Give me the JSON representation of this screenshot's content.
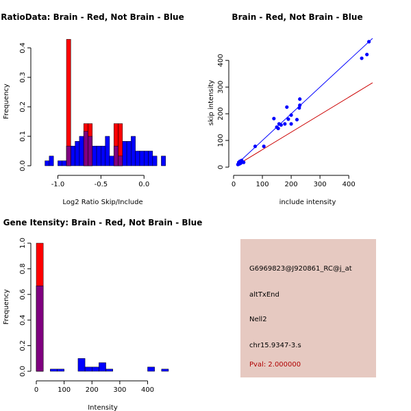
{
  "chart_data": [
    {
      "type": "histogram",
      "title": "RatioData: Brain - Red, Not Brain - Blue",
      "xlabel": "Log2 Ratio Skip/Include",
      "ylabel": "Frequency",
      "xlim": [
        -1.25,
        0.3
      ],
      "ylim": [
        0,
        0.43
      ],
      "xticks": [
        -1.0,
        -0.5,
        0.0
      ],
      "xtick_labels": [
        "-1.0",
        "-0.5",
        "0.0"
      ],
      "yticks": [
        0.0,
        0.1,
        0.2,
        0.3,
        0.4
      ],
      "ytick_labels": [
        "0.0",
        "0.1",
        "0.2",
        "0.3",
        "0.4"
      ],
      "bin_width": 0.05,
      "series": [
        {
          "name": "Not Brain",
          "color": "#0000ff",
          "bins": [
            [
              -1.15,
              0.017
            ],
            [
              -1.1,
              0.033
            ],
            [
              -1.0,
              0.017
            ],
            [
              -0.95,
              0.017
            ],
            [
              -0.9,
              0.067
            ],
            [
              -0.85,
              0.067
            ],
            [
              -0.8,
              0.083
            ],
            [
              -0.75,
              0.1
            ],
            [
              -0.7,
              0.117
            ],
            [
              -0.65,
              0.1
            ],
            [
              -0.6,
              0.067
            ],
            [
              -0.55,
              0.067
            ],
            [
              -0.5,
              0.067
            ],
            [
              -0.45,
              0.1
            ],
            [
              -0.4,
              0.033
            ],
            [
              -0.35,
              0.067
            ],
            [
              -0.3,
              0.033
            ],
            [
              -0.25,
              0.083
            ],
            [
              -0.2,
              0.083
            ],
            [
              -0.15,
              0.1
            ],
            [
              -0.1,
              0.05
            ],
            [
              -0.05,
              0.05
            ],
            [
              0.0,
              0.05
            ],
            [
              0.05,
              0.05
            ],
            [
              0.1,
              0.033
            ],
            [
              0.2,
              0.033
            ]
          ]
        },
        {
          "name": "Brain",
          "color": "#ff0000",
          "bins": [
            [
              -0.9,
              0.429
            ],
            [
              -0.7,
              0.143
            ],
            [
              -0.65,
              0.143
            ],
            [
              -0.35,
              0.143
            ],
            [
              -0.3,
              0.143
            ]
          ]
        }
      ]
    },
    {
      "type": "scatter",
      "title": "Brain - Red, Not Brain - Blue",
      "xlabel": "include intensity",
      "ylabel": "skip intensity",
      "xlim": [
        0,
        490
      ],
      "ylim": [
        0,
        480
      ],
      "xticks": [
        0,
        100,
        200,
        300,
        400
      ],
      "xtick_labels": [
        "0",
        "100",
        "200",
        "300",
        "400"
      ],
      "yticks": [
        0,
        100,
        200,
        300,
        400
      ],
      "ytick_labels": [
        "0",
        "100",
        "200",
        "300",
        "400"
      ],
      "points": [
        [
          470,
          470
        ],
        [
          463,
          422
        ],
        [
          445,
          408
        ],
        [
          230,
          255
        ],
        [
          230,
          232
        ],
        [
          228,
          222
        ],
        [
          185,
          225
        ],
        [
          200,
          195
        ],
        [
          190,
          180
        ],
        [
          220,
          178
        ],
        [
          140,
          182
        ],
        [
          158,
          162
        ],
        [
          165,
          158
        ],
        [
          178,
          162
        ],
        [
          150,
          150
        ],
        [
          155,
          145
        ],
        [
          200,
          162
        ],
        [
          105,
          78
        ],
        [
          75,
          78
        ],
        [
          30,
          20
        ],
        [
          25,
          15
        ],
        [
          20,
          12
        ],
        [
          18,
          18
        ],
        [
          15,
          10
        ],
        [
          22,
          22
        ],
        [
          28,
          25
        ],
        [
          35,
          18
        ]
      ],
      "point_color": "#0000ff",
      "lines": [
        {
          "name": "fit",
          "color": "#0000ff",
          "slope": 1.0,
          "intercept": 0
        },
        {
          "name": "reference",
          "color": "#cc0000",
          "slope": 0.655,
          "intercept": 0
        }
      ]
    },
    {
      "type": "histogram",
      "title": "Gene Itensity: Brain - Red, Not Brain - Blue",
      "xlabel": "Intensity",
      "ylabel": "Frequency",
      "xlim": [
        0,
        480
      ],
      "ylim": [
        0,
        1.0
      ],
      "xticks": [
        0,
        100,
        200,
        300,
        400
      ],
      "xtick_labels": [
        "0",
        "100",
        "200",
        "300",
        "400"
      ],
      "yticks": [
        0.0,
        0.2,
        0.4,
        0.6,
        0.8,
        1.0
      ],
      "ytick_labels": [
        "0.0",
        "0.2",
        "0.4",
        "0.6",
        "0.8",
        "1.0"
      ],
      "bin_width": 25,
      "series": [
        {
          "name": "Not Brain",
          "color": "#0000ff",
          "bins": [
            [
              0,
              0.667
            ],
            [
              50,
              0.017
            ],
            [
              75,
              0.017
            ],
            [
              150,
              0.1
            ],
            [
              175,
              0.033
            ],
            [
              200,
              0.033
            ],
            [
              225,
              0.067
            ],
            [
              250,
              0.017
            ],
            [
              400,
              0.033
            ],
            [
              450,
              0.017
            ]
          ]
        },
        {
          "name": "Brain",
          "color": "#ff0000",
          "bins": [
            [
              0,
              1.0
            ]
          ]
        }
      ]
    }
  ],
  "info": {
    "probe_id": "G6969823@J920861_RC@j_at",
    "event_type": "altTxEnd",
    "gene": "Nell2",
    "location": "chr15.9347-3.s",
    "pval": "Pval: 2.000000"
  }
}
